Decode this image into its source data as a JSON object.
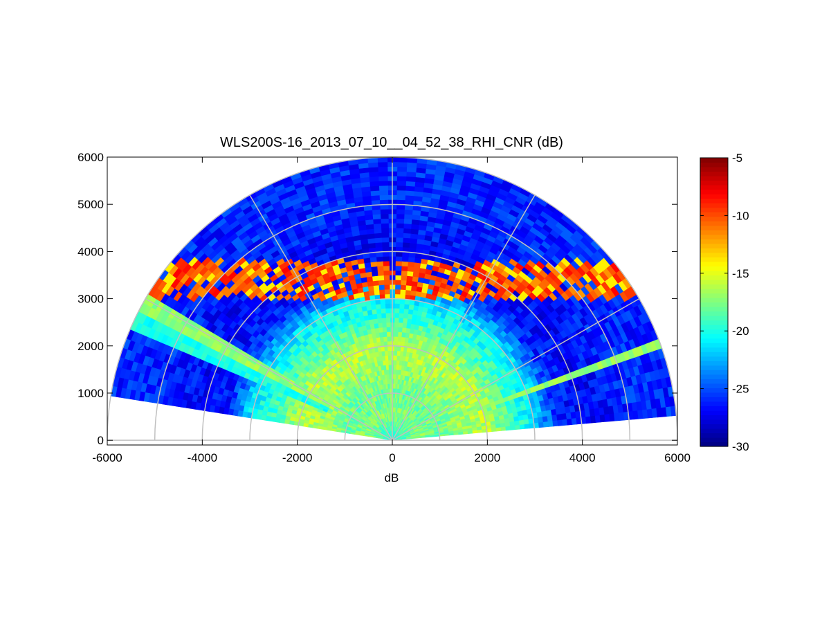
{
  "chart_data": {
    "type": "heatmap",
    "subtype": "polar-rhi-sector",
    "title": "WLS200S-16_2013_07_10__04_52_38_RHI_CNR (dB)",
    "xlabel": "dB",
    "ylabel": "",
    "xlim": [
      -6000,
      6000
    ],
    "ylim": [
      -100,
      6000
    ],
    "xticks": [
      -6000,
      -4000,
      -2000,
      0,
      2000,
      4000,
      6000
    ],
    "yticks": [
      0,
      1000,
      2000,
      3000,
      4000,
      5000,
      6000
    ],
    "colorbar": {
      "colormap": "jet",
      "clim": [
        -30,
        -5
      ],
      "ticks": [
        -5,
        -10,
        -15,
        -20,
        -25,
        -30
      ]
    },
    "polar_grid": {
      "range_rings": [
        1000,
        2000,
        3000,
        4000,
        5000,
        6000
      ],
      "spokes_deg": [
        0,
        30,
        60,
        90,
        120,
        150,
        180
      ]
    },
    "scan": {
      "elevation_min_deg": 5,
      "elevation_max_deg": 171,
      "max_range": 6000,
      "range_gate": 100
    },
    "cnr_profile_db": {
      "range": [
        0,
        500,
        1000,
        1500,
        2000,
        2500,
        3000,
        3500,
        4000,
        5000,
        6000
      ],
      "cnr": [
        -20,
        -17.5,
        -18,
        -17,
        -16,
        -19,
        -21,
        -26,
        -27,
        -26,
        -26
      ]
    },
    "cloud_layer": {
      "height_min": 3000,
      "height_max": 3800,
      "cnr": -6
    },
    "beam_highlights": [
      {
        "elevation_deg": 20,
        "cnr": -17
      },
      {
        "elevation_deg": 151,
        "cnr": -17
      },
      {
        "elevation_deg": 155,
        "cnr": -20
      }
    ],
    "grid": true
  },
  "colors": {
    "grid": "#c0c0c0",
    "axes": "#000000",
    "background": "#ffffff"
  }
}
